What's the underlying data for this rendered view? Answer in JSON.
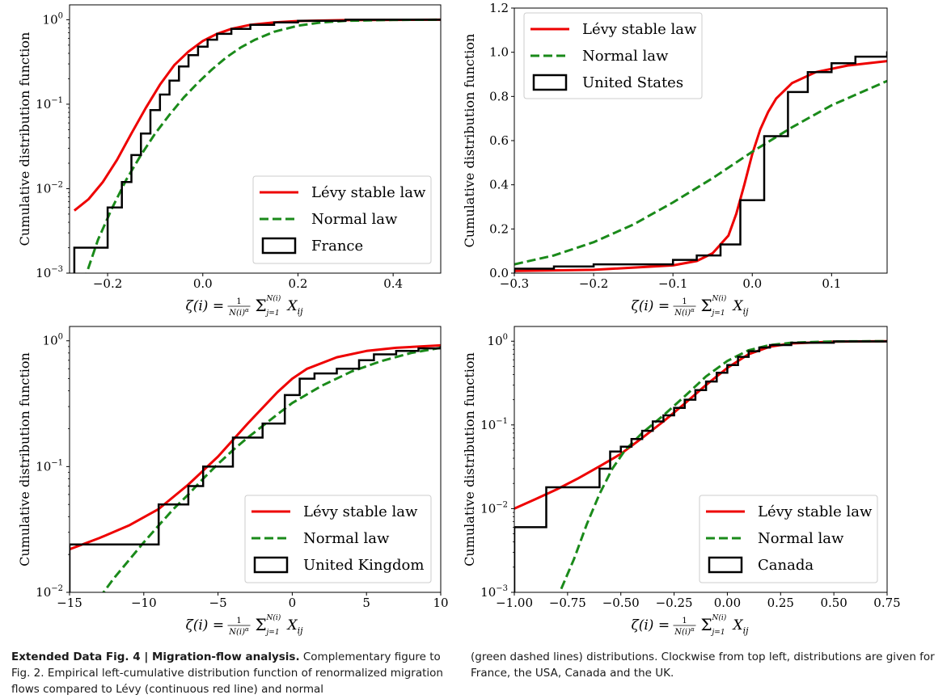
{
  "caption": {
    "label": "Extended Data Fig. 4 | Migration-flow analysis.",
    "text_left": "Complementary figure to Fig. 2. Empirical left-cumulative distribution function of renormalized migration flows compared to Lévy (continuous red line) and normal",
    "text_right": "(green dashed lines) distributions. Clockwise from top left, distributions are given for France, the USA, Canada and the UK."
  },
  "colors": {
    "levy": "#ee0000",
    "normal": "#1a8a1a",
    "empirical": "#000000"
  },
  "chart_data": [
    {
      "type": "line",
      "panel": "top-left",
      "ylabel": "Cumulative distribution function",
      "xlabel": "ζ(i) = 1/N(i)^α Σ_{j=1}^{N(i)} X_ij",
      "yscale": "log",
      "xlim": [
        -0.28,
        0.5
      ],
      "ylim": [
        0.001,
        1.5
      ],
      "xticks": [
        -0.2,
        0.0,
        0.2,
        0.4
      ],
      "xtick_labels": [
        "−0.2",
        "0.0",
        "0.2",
        "0.4"
      ],
      "yticks": [
        0.001,
        0.01,
        0.1,
        1
      ],
      "ytick_labels": [
        [
          "10",
          "−3"
        ],
        [
          "10",
          "−2"
        ],
        [
          "10",
          "−1"
        ],
        [
          "10",
          "0"
        ]
      ],
      "legend_position": "lower-right",
      "series": [
        {
          "name": "Lévy stable law",
          "kind": "levy",
          "x": [
            -0.27,
            -0.24,
            -0.21,
            -0.18,
            -0.15,
            -0.12,
            -0.09,
            -0.06,
            -0.03,
            0.0,
            0.03,
            0.06,
            0.1,
            0.15,
            0.2,
            0.3,
            0.5
          ],
          "y": [
            0.0055,
            0.0075,
            0.012,
            0.022,
            0.045,
            0.09,
            0.17,
            0.29,
            0.42,
            0.56,
            0.68,
            0.78,
            0.87,
            0.93,
            0.965,
            0.99,
            1.0
          ]
        },
        {
          "name": "Normal law",
          "kind": "normal",
          "x": [
            -0.25,
            -0.22,
            -0.19,
            -0.16,
            -0.13,
            -0.1,
            -0.07,
            -0.04,
            -0.01,
            0.02,
            0.05,
            0.08,
            0.11,
            0.15,
            0.2,
            0.25,
            0.3,
            0.4,
            0.5
          ],
          "y": [
            0.0008,
            0.0025,
            0.006,
            0.013,
            0.025,
            0.045,
            0.075,
            0.12,
            0.18,
            0.26,
            0.36,
            0.47,
            0.58,
            0.72,
            0.85,
            0.93,
            0.97,
            0.995,
            1.0
          ]
        },
        {
          "name": "France",
          "kind": "empirical",
          "step": true,
          "x": [
            -0.27,
            -0.2,
            -0.17,
            -0.15,
            -0.13,
            -0.11,
            -0.09,
            -0.07,
            -0.05,
            -0.03,
            -0.01,
            0.01,
            0.03,
            0.06,
            0.1,
            0.15,
            0.2,
            0.3,
            0.5
          ],
          "y": [
            0.002,
            0.006,
            0.012,
            0.025,
            0.045,
            0.085,
            0.13,
            0.19,
            0.28,
            0.38,
            0.48,
            0.58,
            0.68,
            0.78,
            0.87,
            0.93,
            0.97,
            1.0,
            1.0
          ]
        }
      ]
    },
    {
      "type": "line",
      "panel": "top-right",
      "ylabel": "Cumulative distribution function",
      "xlabel": "ζ(i) = 1/N(i)^α Σ_{j=1}^{N(i)} X_ij",
      "yscale": "linear",
      "xlim": [
        -0.3,
        0.17
      ],
      "ylim": [
        0.0,
        1.2
      ],
      "xticks": [
        -0.3,
        -0.2,
        -0.1,
        0.0,
        0.1
      ],
      "xtick_labels": [
        "−0.3",
        "−0.2",
        "−0.1",
        "0.0",
        "0.1"
      ],
      "yticks": [
        0.0,
        0.2,
        0.4,
        0.6,
        0.8,
        1.0,
        1.2
      ],
      "ytick_labels": [
        "0.0",
        "0.2",
        "0.4",
        "0.6",
        "0.8",
        "1.0",
        "1.2"
      ],
      "legend_position": "upper-left",
      "series": [
        {
          "name": "Lévy stable law",
          "kind": "levy",
          "x": [
            -0.3,
            -0.2,
            -0.1,
            -0.07,
            -0.05,
            -0.03,
            -0.02,
            -0.01,
            0.0,
            0.01,
            0.02,
            0.03,
            0.05,
            0.08,
            0.12,
            0.17
          ],
          "y": [
            0.01,
            0.015,
            0.035,
            0.055,
            0.09,
            0.17,
            0.27,
            0.4,
            0.54,
            0.65,
            0.73,
            0.79,
            0.86,
            0.91,
            0.94,
            0.96
          ]
        },
        {
          "name": "Normal law",
          "kind": "normal",
          "x": [
            -0.3,
            -0.25,
            -0.2,
            -0.15,
            -0.1,
            -0.05,
            0.0,
            0.05,
            0.1,
            0.17
          ],
          "y": [
            0.04,
            0.08,
            0.14,
            0.22,
            0.32,
            0.43,
            0.55,
            0.66,
            0.76,
            0.87
          ]
        },
        {
          "name": "United States",
          "kind": "empirical",
          "step": true,
          "x": [
            -0.3,
            -0.25,
            -0.2,
            -0.1,
            -0.07,
            -0.04,
            -0.015,
            0.015,
            0.045,
            0.07,
            0.1,
            0.13,
            0.17
          ],
          "y": [
            0.02,
            0.03,
            0.04,
            0.06,
            0.08,
            0.13,
            0.33,
            0.62,
            0.82,
            0.91,
            0.95,
            0.98,
            1.0
          ]
        }
      ]
    },
    {
      "type": "line",
      "panel": "bottom-left",
      "ylabel": "Cumulative distribution function",
      "xlabel": "ζ(i) = 1/N(i)^α Σ_{j=1}^{N(i)} X_ij",
      "yscale": "log",
      "xlim": [
        -15,
        10
      ],
      "ylim": [
        0.01,
        1.3
      ],
      "xticks": [
        -15,
        -10,
        -5,
        0,
        5,
        10
      ],
      "xtick_labels": [
        "−15",
        "−10",
        "−5",
        "0",
        "5",
        "10"
      ],
      "yticks": [
        0.01,
        0.1,
        1
      ],
      "ytick_labels": [
        [
          "10",
          "−2"
        ],
        [
          "10",
          "−1"
        ],
        [
          "10",
          "0"
        ]
      ],
      "legend_position": "lower-right",
      "series": [
        {
          "name": "Lévy stable law",
          "kind": "levy",
          "x": [
            -15,
            -13,
            -11,
            -9,
            -7,
            -5,
            -3,
            -1,
            0,
            1,
            3,
            5,
            7,
            10
          ],
          "y": [
            0.022,
            0.027,
            0.034,
            0.046,
            0.072,
            0.12,
            0.22,
            0.39,
            0.5,
            0.6,
            0.74,
            0.83,
            0.88,
            0.92
          ]
        },
        {
          "name": "Normal law",
          "kind": "normal",
          "x": [
            -13,
            -12,
            -11,
            -10,
            -9,
            -8,
            -7,
            -6,
            -5,
            -4,
            -3,
            -2,
            -1,
            0,
            2,
            4,
            6,
            8,
            10
          ],
          "y": [
            0.009,
            0.013,
            0.018,
            0.025,
            0.034,
            0.046,
            0.06,
            0.08,
            0.105,
            0.135,
            0.17,
            0.21,
            0.26,
            0.32,
            0.44,
            0.57,
            0.69,
            0.8,
            0.88
          ]
        },
        {
          "name": "United Kingdom",
          "kind": "empirical",
          "step": true,
          "x": [
            -15,
            -9,
            -7,
            -6,
            -4,
            -2,
            -0.5,
            0.5,
            1.5,
            3,
            4.5,
            5.5,
            7,
            8.5,
            10
          ],
          "y": [
            0.024,
            0.05,
            0.07,
            0.1,
            0.17,
            0.22,
            0.37,
            0.5,
            0.55,
            0.6,
            0.7,
            0.78,
            0.83,
            0.87,
            0.89
          ]
        }
      ]
    },
    {
      "type": "line",
      "panel": "bottom-right",
      "ylabel": "Cumulative distribution function",
      "xlabel": "ζ(i) = 1/N(i)^α Σ_{j=1}^{N(i)} X_ij",
      "yscale": "log",
      "xlim": [
        -1.0,
        0.75
      ],
      "ylim": [
        0.001,
        1.5
      ],
      "xticks": [
        -1.0,
        -0.75,
        -0.5,
        -0.25,
        0.0,
        0.25,
        0.5,
        0.75
      ],
      "xtick_labels": [
        "−1.00",
        "−0.75",
        "−0.50",
        "−0.25",
        "0.00",
        "0.25",
        "0.50",
        "0.75"
      ],
      "yticks": [
        0.001,
        0.01,
        0.1,
        1
      ],
      "ytick_labels": [
        [
          "10",
          "−3"
        ],
        [
          "10",
          "−2"
        ],
        [
          "10",
          "−1"
        ],
        [
          "10",
          "0"
        ]
      ],
      "legend_position": "lower-right",
      "series": [
        {
          "name": "Lévy stable law",
          "kind": "levy",
          "x": [
            -1.0,
            -0.9,
            -0.8,
            -0.7,
            -0.6,
            -0.5,
            -0.4,
            -0.3,
            -0.2,
            -0.1,
            0.0,
            0.1,
            0.2,
            0.3,
            0.5,
            0.75
          ],
          "y": [
            0.01,
            0.013,
            0.017,
            0.023,
            0.032,
            0.045,
            0.07,
            0.11,
            0.18,
            0.3,
            0.48,
            0.7,
            0.86,
            0.94,
            0.99,
            1.0
          ]
        },
        {
          "name": "Normal law",
          "kind": "normal",
          "x": [
            -0.78,
            -0.72,
            -0.66,
            -0.6,
            -0.54,
            -0.48,
            -0.4,
            -0.3,
            -0.2,
            -0.1,
            0.0,
            0.1,
            0.2,
            0.3,
            0.5,
            0.75
          ],
          "y": [
            0.0011,
            0.0025,
            0.0065,
            0.015,
            0.03,
            0.05,
            0.08,
            0.13,
            0.22,
            0.38,
            0.58,
            0.78,
            0.9,
            0.96,
            0.995,
            1.0
          ]
        },
        {
          "name": "Canada",
          "kind": "empirical",
          "step": true,
          "x": [
            -1.0,
            -0.85,
            -0.6,
            -0.55,
            -0.5,
            -0.45,
            -0.4,
            -0.35,
            -0.3,
            -0.25,
            -0.2,
            -0.15,
            -0.1,
            -0.05,
            0.0,
            0.05,
            0.1,
            0.15,
            0.2,
            0.3,
            0.5,
            0.75
          ],
          "y": [
            0.006,
            0.018,
            0.03,
            0.048,
            0.055,
            0.068,
            0.085,
            0.11,
            0.13,
            0.16,
            0.2,
            0.26,
            0.33,
            0.42,
            0.52,
            0.65,
            0.76,
            0.84,
            0.9,
            0.96,
            0.995,
            1.0
          ]
        }
      ]
    }
  ]
}
